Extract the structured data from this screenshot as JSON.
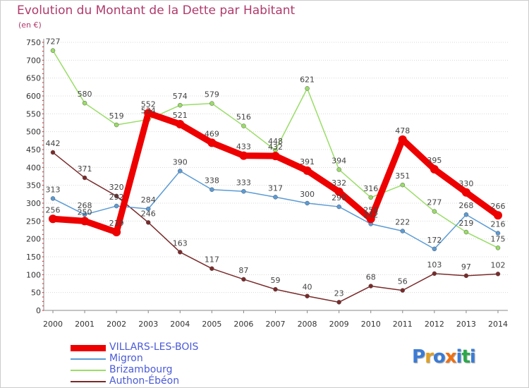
{
  "title": "Evolution du Montant de la Dette par Habitant",
  "subtitle": "(en €)",
  "logo_text": "Proxiti",
  "chart_data": {
    "type": "line",
    "title": "Evolution du Montant de la Dette par Habitant",
    "subtitle": "(en €)",
    "x": [
      "2000",
      "2001",
      "2002",
      "2003",
      "2004",
      "2005",
      "2006",
      "2007",
      "2008",
      "2009",
      "2010",
      "2011",
      "2012",
      "2013",
      "2014"
    ],
    "ylim": [
      0,
      750
    ],
    "yticks": [
      0,
      50,
      100,
      150,
      200,
      250,
      300,
      350,
      400,
      450,
      500,
      550,
      600,
      650,
      700,
      750
    ],
    "grid": "horizontal dotted",
    "legend_position": "bottom-left",
    "series": [
      {
        "name": "VILLARS-LES-BOIS",
        "color": "#ee0000",
        "values": [
          256,
          250,
          219,
          552,
          521,
          469,
          433,
          432,
          391,
          332,
          256,
          478,
          395,
          330,
          266
        ]
      },
      {
        "name": "Migron",
        "color": "#5b9bd5",
        "values": [
          313,
          268,
          292,
          284,
          390,
          338,
          333,
          317,
          300,
          290,
          242,
          222,
          172,
          268,
          216
        ]
      },
      {
        "name": "Brizambourg",
        "color": "#99dd66",
        "values": [
          727,
          580,
          519,
          534,
          574,
          579,
          516,
          448,
          621,
          394,
          316,
          351,
          277,
          219,
          175
        ]
      },
      {
        "name": "Authon-Ébéon",
        "color": "#7a2a2a",
        "values": [
          442,
          371,
          320,
          246,
          163,
          117,
          87,
          59,
          40,
          23,
          68,
          56,
          103,
          97,
          102
        ]
      }
    ]
  }
}
